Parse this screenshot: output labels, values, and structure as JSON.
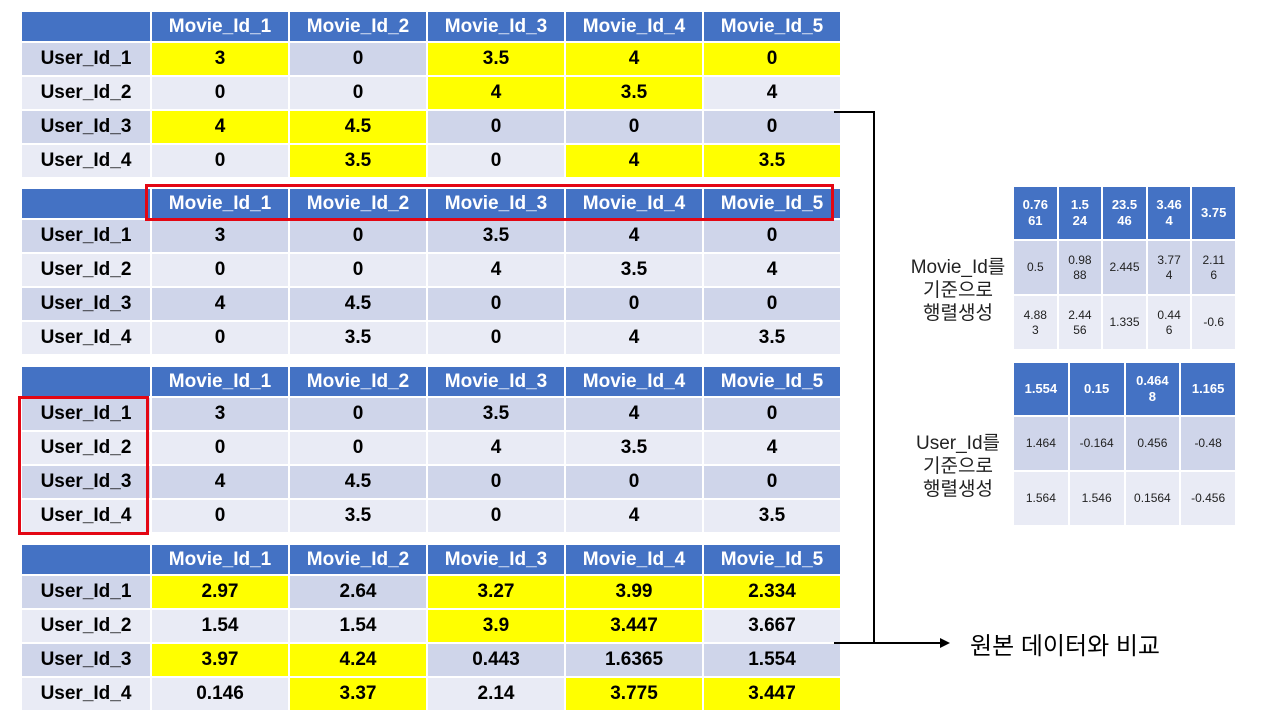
{
  "columns": [
    "Movie_Id_1",
    "Movie_Id_2",
    "Movie_Id_3",
    "Movie_Id_4",
    "Movie_Id_5"
  ],
  "rows": [
    "User_Id_1",
    "User_Id_2",
    "User_Id_3",
    "User_Id_4"
  ],
  "original_matrix": [
    [
      "3",
      "0",
      "3.5",
      "4",
      "0"
    ],
    [
      "0",
      "0",
      "4",
      "3.5",
      "4"
    ],
    [
      "4",
      "4.5",
      "0",
      "0",
      "0"
    ],
    [
      "0",
      "3.5",
      "0",
      "4",
      "3.5"
    ]
  ],
  "original_highlight": [
    [
      true,
      false,
      true,
      true,
      true
    ],
    [
      false,
      false,
      true,
      true,
      false
    ],
    [
      true,
      true,
      false,
      false,
      false
    ],
    [
      false,
      true,
      false,
      true,
      true
    ]
  ],
  "predicted_matrix": [
    [
      "2.97",
      "2.64",
      "3.27",
      "3.99",
      "2.334"
    ],
    [
      "1.54",
      "1.54",
      "3.9",
      "3.447",
      "3.667"
    ],
    [
      "3.97",
      "4.24",
      "0.443",
      "1.6365",
      "1.554"
    ],
    [
      "0.146",
      "3.37",
      "2.14",
      "3.775",
      "3.447"
    ]
  ],
  "predicted_highlight": [
    [
      true,
      false,
      true,
      true,
      true
    ],
    [
      false,
      false,
      true,
      true,
      false
    ],
    [
      true,
      true,
      false,
      false,
      false
    ],
    [
      false,
      true,
      false,
      true,
      true
    ]
  ],
  "movie_factor": {
    "label": "Movie_Id를\n기준으로\n행렬생성",
    "header": [
      "0.76\n61",
      "1.5\n24",
      "23.5\n46",
      "3.46\n4",
      "3.75"
    ],
    "rows": [
      [
        "0.5",
        "0.98\n88",
        "2.445",
        "3.77\n4",
        "2.11\n6"
      ],
      [
        "4.88\n3",
        "2.44\n56",
        "1.335",
        "0.44\n6",
        "-0.6"
      ]
    ]
  },
  "user_factor": {
    "label": "User_Id를\n기준으로\n행렬생성",
    "header": [
      "1.554",
      "0.15",
      "0.464\n8",
      "1.165"
    ],
    "rows": [
      [
        "1.464",
        "-0.164",
        "0.456",
        "-0.48"
      ],
      [
        "1.564",
        "1.546",
        "0.1564",
        "-0.456"
      ]
    ]
  },
  "compare_label": "원본 데이터와 비교",
  "colors": {
    "header": "#4472c4",
    "row_dark": "#cfd5ea",
    "row_light": "#e9ebf5",
    "highlight": "#ffff00",
    "selection_box": "#e30613"
  }
}
